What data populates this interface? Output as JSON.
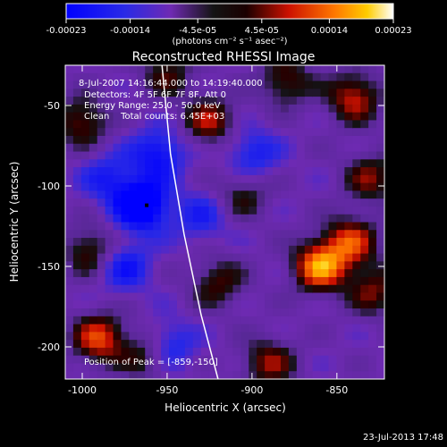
{
  "chart_data": {
    "type": "heatmap",
    "title": "Reconstructed RHESSI Image",
    "xlabel": "Heliocentric X (arcsec)",
    "ylabel": "Heliocentric Y (arcsec)",
    "xlim": [
      -1010,
      -822
    ],
    "ylim": [
      -220,
      -25
    ],
    "xticks": [
      -1000,
      -950,
      -900,
      -850
    ],
    "yticks": [
      -50,
      -100,
      -150,
      -200
    ],
    "colorbar": {
      "ticks": [
        "-0.00023",
        "-0.00014",
        "-4.5e-05",
        "4.5e-05",
        "0.00014",
        "0.00023"
      ],
      "values": [
        -0.00023,
        -0.00014,
        -4.5e-05,
        4.5e-05,
        0.00014,
        0.00023
      ],
      "unit_label": "(photons cm⁻² s⁻¹ asec⁻²)",
      "range": [
        -0.00023,
        0.00023
      ]
    },
    "annotations": [
      "8-Jul-2007 14:16:44.000 to 14:19:40.000",
      "Detectors: 4F 5F 6F 7F 8F, Att 0",
      "Energy Range: 25.0 - 50.0 keV",
      "Clean    Total counts: 6.45E+03",
      "Position of Peak = [-859,-150]"
    ],
    "peak": {
      "x": -859,
      "y": -150
    },
    "min_marker": {
      "x": -962,
      "y": -112
    },
    "limb": [
      [
        -953,
        -25
      ],
      [
        -948,
        -80
      ],
      [
        -940,
        -130
      ],
      [
        -930,
        -180
      ],
      [
        -920,
        -220
      ]
    ],
    "blobs": [
      {
        "x": -860,
        "y": -150,
        "v": 0.00023
      },
      {
        "x": -842,
        "y": -135,
        "v": 0.00017
      },
      {
        "x": -828,
        "y": -165,
        "v": 0.00012
      },
      {
        "x": -990,
        "y": -195,
        "v": 0.00018
      },
      {
        "x": -960,
        "y": -205,
        "v": 0.00013
      },
      {
        "x": -925,
        "y": -60,
        "v": 0.00014
      },
      {
        "x": -880,
        "y": -35,
        "v": 0.00012
      },
      {
        "x": -840,
        "y": -45,
        "v": 0.00016
      },
      {
        "x": -830,
        "y": -95,
        "v": 0.00012
      },
      {
        "x": -1000,
        "y": -60,
        "v": 0.00013
      },
      {
        "x": -995,
        "y": -140,
        "v": 0.00012
      },
      {
        "x": -920,
        "y": -160,
        "v": 0.00011
      },
      {
        "x": -890,
        "y": -210,
        "v": 0.00013
      },
      {
        "x": -950,
        "y": -30,
        "v": 0.0001
      },
      {
        "x": -905,
        "y": -105,
        "v": 9e-05
      },
      {
        "x": -900,
        "y": -80,
        "v": -0.00011
      },
      {
        "x": -965,
        "y": -112,
        "v": -0.00023
      },
      {
        "x": -955,
        "y": -80,
        "v": -0.00014
      },
      {
        "x": -975,
        "y": -150,
        "v": -0.00012
      },
      {
        "x": -950,
        "y": -200,
        "v": -0.00014
      },
      {
        "x": -985,
        "y": -95,
        "v": -0.0001
      },
      {
        "x": -930,
        "y": -120,
        "v": -9e-05
      }
    ]
  },
  "footer": {
    "date": "23-Jul-2013 17:48"
  }
}
